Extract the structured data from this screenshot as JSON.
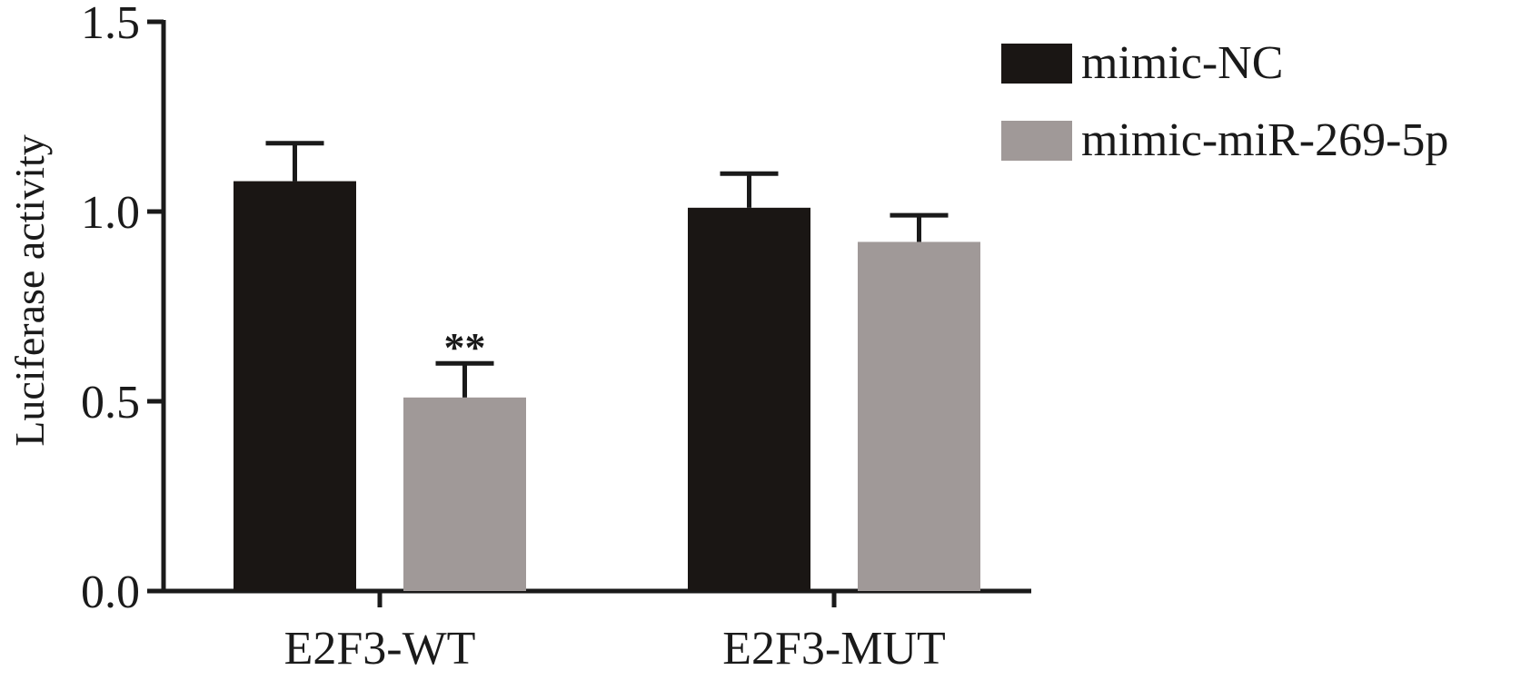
{
  "chart_data": {
    "type": "bar",
    "title": "",
    "xlabel": "",
    "ylabel": "Luciferase activity",
    "ylim": [
      0,
      1.5
    ],
    "yticks": [
      "0.0",
      "0.5",
      "1.0",
      "1.5"
    ],
    "categories": [
      "E2F3-WT",
      "E2F3-MUT"
    ],
    "grid": false,
    "legend_position": "top-right",
    "series": [
      {
        "name": "mimic-NC",
        "color": "#1a1614",
        "values": [
          1.08,
          1.01
        ],
        "errors": [
          0.1,
          0.09
        ]
      },
      {
        "name": "mimic-miR-269-5p",
        "color": "#a09998",
        "values": [
          0.51,
          0.92
        ],
        "errors": [
          0.09,
          0.07
        ]
      }
    ],
    "annotations": [
      {
        "text": "**",
        "category": "E2F3-WT",
        "series": "mimic-miR-269-5p"
      }
    ]
  }
}
